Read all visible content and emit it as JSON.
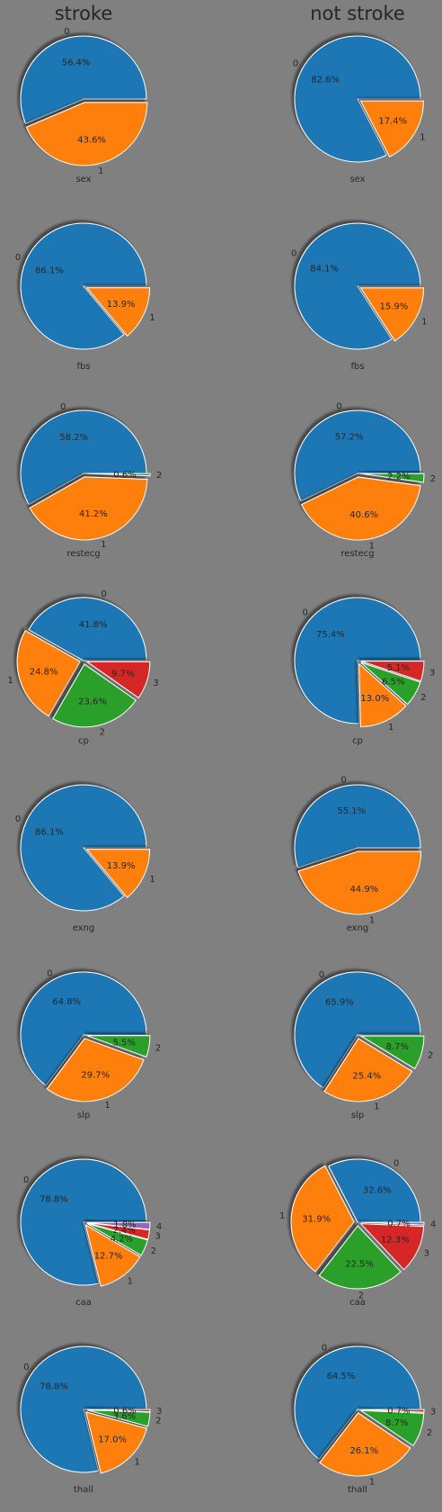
{
  "columns": [
    "stroke",
    "not stroke"
  ],
  "colors": [
    "#1f77b4",
    "#ff7f0e",
    "#2ca02c",
    "#d62728",
    "#9467bd"
  ],
  "chart_data": [
    {
      "type": "pie",
      "column": "stroke",
      "xlabel": "sex",
      "labels": [
        "0",
        "1"
      ],
      "values": [
        56.4,
        43.6
      ],
      "pct_labels": [
        "56.4%",
        "43.6%"
      ]
    },
    {
      "type": "pie",
      "column": "not stroke",
      "xlabel": "sex",
      "labels": [
        "0",
        "1"
      ],
      "values": [
        82.6,
        17.4
      ],
      "pct_labels": [
        "82.6%",
        "17.4%"
      ]
    },
    {
      "type": "pie",
      "column": "stroke",
      "xlabel": "fbs",
      "labels": [
        "0",
        "1"
      ],
      "values": [
        86.1,
        13.9
      ],
      "pct_labels": [
        "86.1%",
        "13.9%"
      ]
    },
    {
      "type": "pie",
      "column": "not stroke",
      "xlabel": "fbs",
      "labels": [
        "0",
        "1"
      ],
      "values": [
        84.1,
        15.9
      ],
      "pct_labels": [
        "84.1%",
        "15.9%"
      ]
    },
    {
      "type": "pie",
      "column": "stroke",
      "xlabel": "restecg",
      "labels": [
        "0",
        "1",
        "2"
      ],
      "values": [
        58.2,
        41.2,
        0.6
      ],
      "pct_labels": [
        "58.2%",
        "41.2%",
        "0.6%"
      ]
    },
    {
      "type": "pie",
      "column": "not stroke",
      "xlabel": "restecg",
      "labels": [
        "0",
        "1",
        "2"
      ],
      "values": [
        57.2,
        40.6,
        2.2
      ],
      "pct_labels": [
        "57.2%",
        "40.6%",
        "2.2%"
      ]
    },
    {
      "type": "pie",
      "column": "stroke",
      "xlabel": "cp",
      "labels": [
        "0",
        "1",
        "2",
        "3"
      ],
      "values": [
        41.8,
        24.8,
        23.6,
        9.7
      ],
      "pct_labels": [
        "41.8%",
        "24.8%",
        "23.6%",
        "9.7%"
      ]
    },
    {
      "type": "pie",
      "column": "not stroke",
      "xlabel": "cp",
      "labels": [
        "0",
        "1",
        "2",
        "3"
      ],
      "values": [
        75.4,
        13.0,
        6.5,
        5.1
      ],
      "pct_labels": [
        "75.4%",
        "13.0%",
        "6.5%",
        "5.1%"
      ]
    },
    {
      "type": "pie",
      "column": "stroke",
      "xlabel": "exng",
      "labels": [
        "0",
        "1"
      ],
      "values": [
        86.1,
        13.9
      ],
      "pct_labels": [
        "86.1%",
        "13.9%"
      ]
    },
    {
      "type": "pie",
      "column": "not stroke",
      "xlabel": "exng",
      "labels": [
        "0",
        "1"
      ],
      "values": [
        55.1,
        44.9
      ],
      "pct_labels": [
        "55.1%",
        "44.9%"
      ]
    },
    {
      "type": "pie",
      "column": "stroke",
      "xlabel": "slp",
      "labels": [
        "0",
        "1",
        "2"
      ],
      "values": [
        64.8,
        29.7,
        5.5
      ],
      "pct_labels": [
        "64.8%",
        "29.7%",
        "5.5%"
      ]
    },
    {
      "type": "pie",
      "column": "not stroke",
      "xlabel": "slp",
      "labels": [
        "0",
        "1",
        "2"
      ],
      "values": [
        65.9,
        25.4,
        8.7
      ],
      "pct_labels": [
        "65.9%",
        "25.4%",
        "8.7%"
      ]
    },
    {
      "type": "pie",
      "column": "stroke",
      "xlabel": "caa",
      "labels": [
        "0",
        "1",
        "2",
        "3",
        "4"
      ],
      "values": [
        78.8,
        12.7,
        4.2,
        2.4,
        1.8
      ],
      "pct_labels": [
        "78.8%",
        "12.7%",
        "4.2%",
        "2.4%",
        "1.8%"
      ]
    },
    {
      "type": "pie",
      "column": "not stroke",
      "xlabel": "caa",
      "labels": [
        "0",
        "1",
        "2",
        "3",
        "4"
      ],
      "values": [
        32.6,
        31.9,
        22.5,
        12.3,
        0.7
      ],
      "pct_labels": [
        "32.6%",
        "31.9%",
        "22.5%",
        "12.3%",
        "0.7%"
      ]
    },
    {
      "type": "pie",
      "column": "stroke",
      "xlabel": "thall",
      "labels": [
        "0",
        "1",
        "2",
        "3"
      ],
      "values": [
        78.8,
        17.0,
        3.6,
        0.6
      ],
      "pct_labels": [
        "78.8%",
        "17.0%",
        "3.6%",
        "0.6%"
      ]
    },
    {
      "type": "pie",
      "column": "not stroke",
      "xlabel": "thall",
      "labels": [
        "0",
        "1",
        "2",
        "3"
      ],
      "values": [
        64.5,
        26.1,
        8.7,
        0.7
      ],
      "pct_labels": [
        "64.5%",
        "26.1%",
        "8.7%",
        "0.7%"
      ]
    }
  ]
}
